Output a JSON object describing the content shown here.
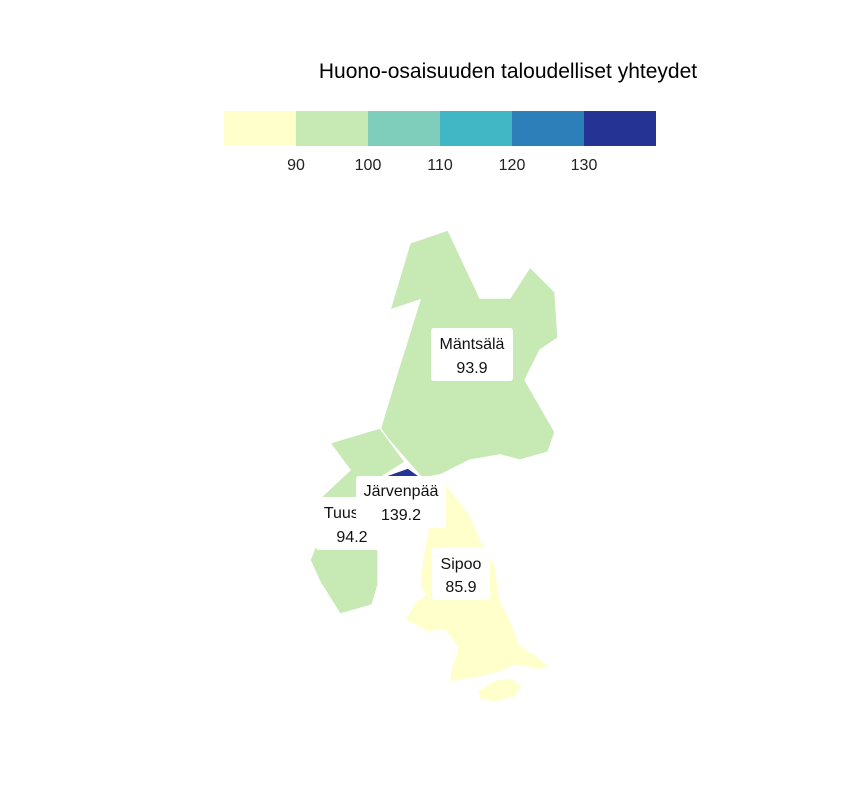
{
  "title": "Huono-osaisuuden taloudelliset yhteydet",
  "legend": {
    "bins": [
      {
        "color": "#ffffcc"
      },
      {
        "color": "#c7e9b4"
      },
      {
        "color": "#7fcdbb"
      },
      {
        "color": "#41b6c4"
      },
      {
        "color": "#2c7fb8"
      },
      {
        "color": "#253494"
      }
    ],
    "ticks": [
      "90",
      "100",
      "110",
      "120",
      "130"
    ]
  },
  "regions": [
    {
      "name": "Mäntsälä",
      "value_label": "93.9",
      "value": 93.9,
      "color": "#c7e9b4"
    },
    {
      "name": "Järvenpää",
      "value_label": "139.2",
      "value": 139.2,
      "color": "#253494"
    },
    {
      "name": "Tuusula",
      "value_label": "94.2",
      "value": 94.2,
      "color": "#c7e9b4"
    },
    {
      "name": "Sipoo",
      "value_label": "85.9",
      "value": 85.9,
      "color": "#ffffcc"
    }
  ]
}
